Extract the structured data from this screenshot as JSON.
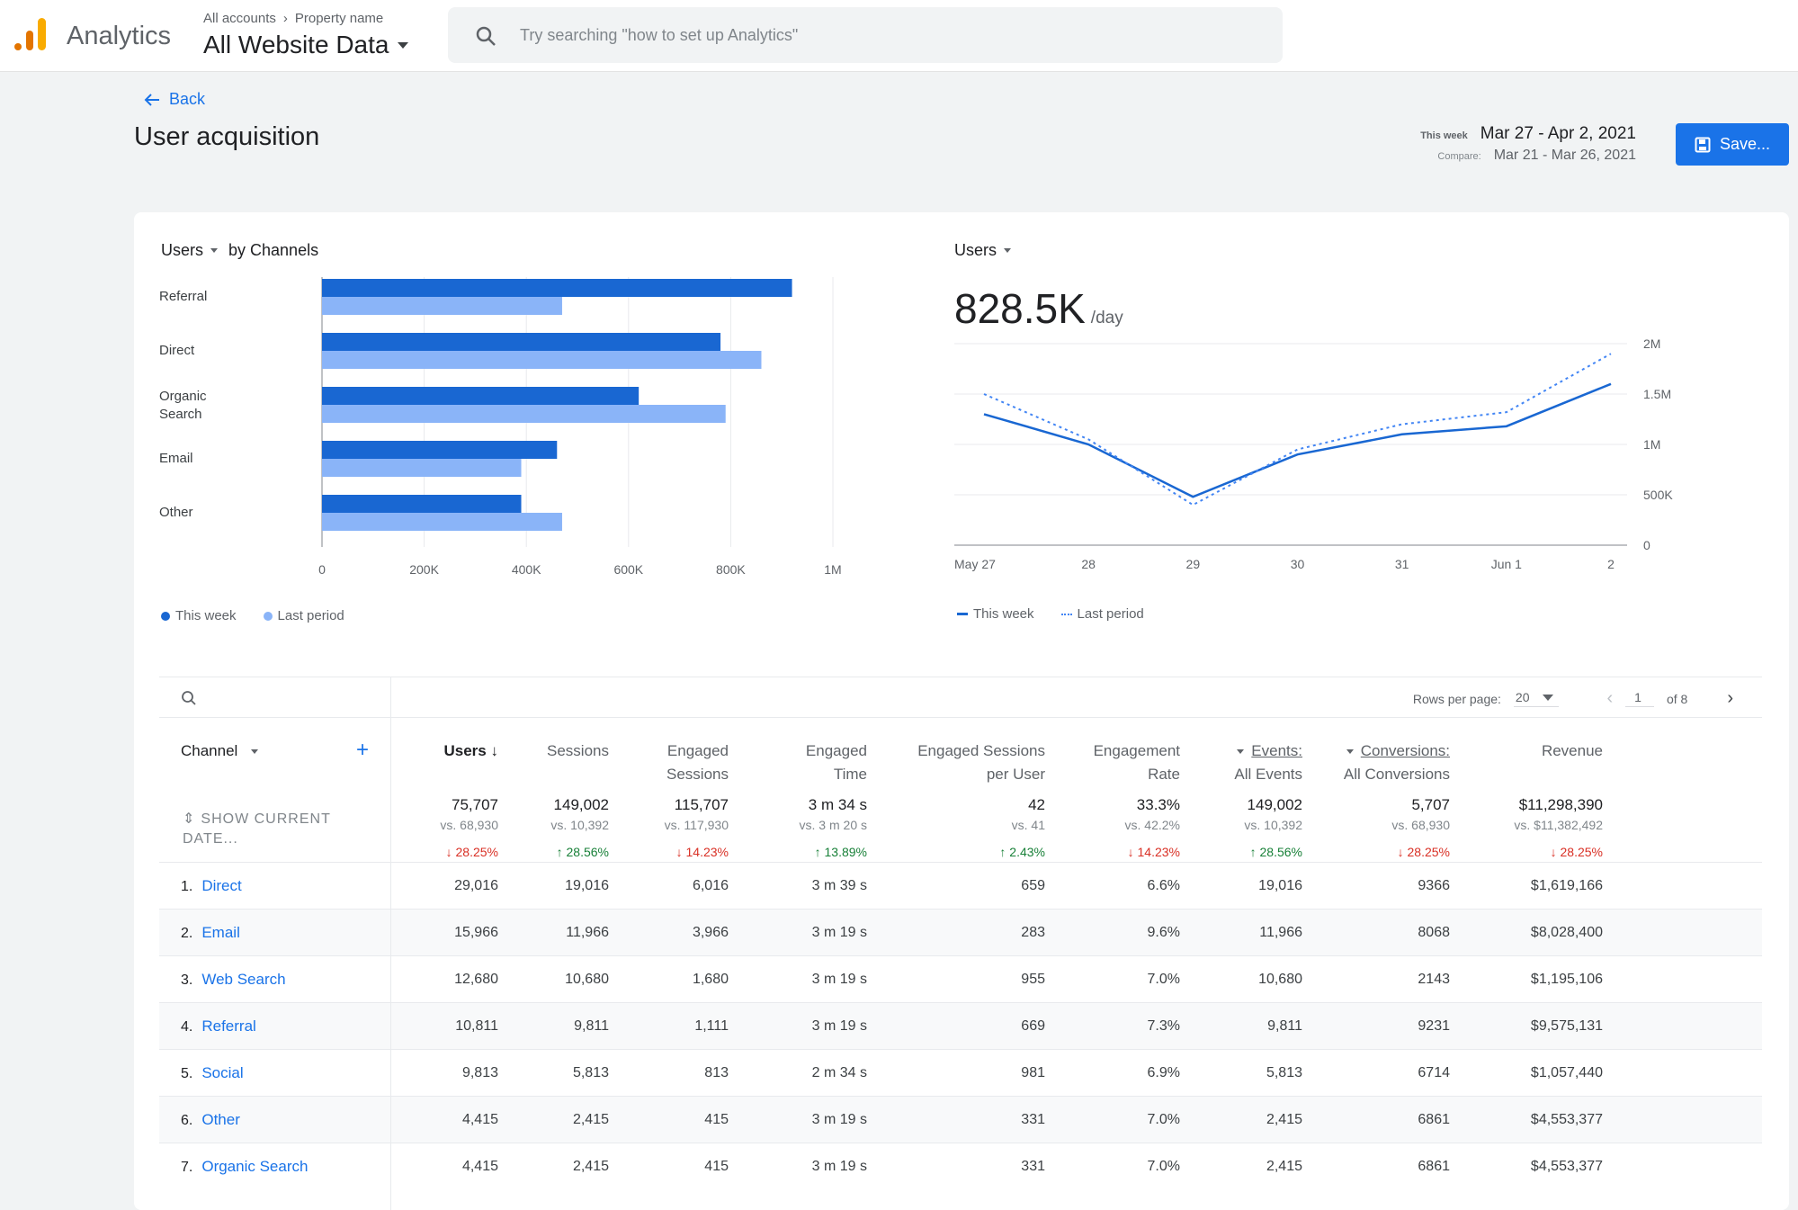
{
  "app": {
    "brand": "Analytics",
    "breadcrumb": [
      "All accounts",
      "Property name"
    ],
    "property": "All Website Data",
    "search_placeholder": "Try searching \"how to set up Analytics\""
  },
  "header": {
    "back_label": "Back",
    "title": "User acquisition",
    "date_label": "This week",
    "date_range": "Mar 27 - Apr 2, 2021",
    "compare_label": "Compare:",
    "compare_range": "Mar 21 - Mar 26, 2021",
    "save_label": "Save..."
  },
  "colors": {
    "accent": "#1a73e8",
    "this_week": "#1967d2",
    "last_period": "#8ab4f8",
    "down": "#d93025",
    "up": "#188038"
  },
  "chart_data": [
    {
      "type": "bar",
      "orientation": "horizontal",
      "title_metric": "Users",
      "title_suffix": "by Channels",
      "categories": [
        "Referral",
        "Direct",
        "Organic Search",
        "Email",
        "Other"
      ],
      "series": [
        {
          "name": "This week",
          "values": [
            920000,
            780000,
            620000,
            460000,
            390000
          ]
        },
        {
          "name": "Last period",
          "values": [
            470000,
            860000,
            790000,
            390000,
            470000
          ]
        }
      ],
      "xticks": [
        "0",
        "200K",
        "400K",
        "600K",
        "800K",
        "1M"
      ],
      "xlim": [
        0,
        1000000
      ],
      "grid": true,
      "legend": "bottom-left"
    },
    {
      "type": "line",
      "title_metric": "Users",
      "headline_value": "828.5K",
      "headline_unit": "/day",
      "x": [
        "May 27",
        "28",
        "29",
        "30",
        "31",
        "Jun 1",
        "2"
      ],
      "series": [
        {
          "name": "This week",
          "style": "solid",
          "values": [
            1300000,
            1000000,
            480000,
            900000,
            1100000,
            1180000,
            1600000
          ]
        },
        {
          "name": "Last period",
          "style": "dotted",
          "values": [
            1500000,
            1050000,
            400000,
            950000,
            1200000,
            1320000,
            1900000
          ]
        }
      ],
      "yticks": [
        "0",
        "500K",
        "1M",
        "1.5M",
        "2M"
      ],
      "ylim": [
        0,
        2000000
      ],
      "y_axis_side": "right",
      "grid": true,
      "legend": "bottom-left"
    }
  ],
  "table": {
    "pager": {
      "rows_label": "Rows per page:",
      "rows_value": "20",
      "page": "1",
      "of": "of 8"
    },
    "channel_header": "Channel",
    "columns": [
      {
        "l1": "Users",
        "l2": ""
      },
      {
        "l1": "Sessions",
        "l2": ""
      },
      {
        "l1": "Engaged",
        "l2": "Sessions"
      },
      {
        "l1": "Engaged",
        "l2": "Time"
      },
      {
        "l1": "Engaged Sessions",
        "l2": "per User"
      },
      {
        "l1": "Engagement",
        "l2": "Rate"
      },
      {
        "l1": "Events:",
        "l2": "All Events"
      },
      {
        "l1": "Conversions:",
        "l2": "All Conversions"
      },
      {
        "l1": "Revenue",
        "l2": ""
      }
    ],
    "show_date_label": "SHOW CURRENT DATE...",
    "totals": [
      {
        "v": "75,707",
        "vs": "vs. 68,930",
        "d": "↓ 28.25%",
        "dir": "dn"
      },
      {
        "v": "149,002",
        "vs": "vs. 10,392",
        "d": "↑ 28.56%",
        "dir": "up"
      },
      {
        "v": "115,707",
        "vs": "vs. 117,930",
        "d": "↓ 14.23%",
        "dir": "dn"
      },
      {
        "v": "3 m 34 s",
        "vs": "vs. 3 m 20 s",
        "d": "↑ 13.89%",
        "dir": "up"
      },
      {
        "v": "42",
        "vs": "vs. 41",
        "d": "↑ 2.43%",
        "dir": "up"
      },
      {
        "v": "33.3%",
        "vs": "vs. 42.2%",
        "d": "↓ 14.23%",
        "dir": "dn"
      },
      {
        "v": "149,002",
        "vs": "vs. 10,392",
        "d": "↑ 28.56%",
        "dir": "up"
      },
      {
        "v": "5,707",
        "vs": "vs. 68,930",
        "d": "↓ 28.25%",
        "dir": "dn"
      },
      {
        "v": "$11,298,390",
        "vs": "vs. $11,382,492",
        "d": "↓ 28.25%",
        "dir": "dn"
      }
    ],
    "rows": [
      {
        "idx": "1.",
        "name": "Direct",
        "cells": [
          "29,016",
          "19,016",
          "6,016",
          "3 m 39 s",
          "659",
          "6.6%",
          "19,016",
          "9366",
          "$1,619,166"
        ]
      },
      {
        "idx": "2.",
        "name": "Email",
        "cells": [
          "15,966",
          "11,966",
          "3,966",
          "3 m 19 s",
          "283",
          "9.6%",
          "11,966",
          "8068",
          "$8,028,400"
        ]
      },
      {
        "idx": "3.",
        "name": "Web Search",
        "cells": [
          "12,680",
          "10,680",
          "1,680",
          "3 m 19 s",
          "955",
          "7.0%",
          "10,680",
          "2143",
          "$1,195,106"
        ]
      },
      {
        "idx": "4.",
        "name": "Referral",
        "cells": [
          "10,811",
          "9,811",
          "1,111",
          "3 m 19 s",
          "669",
          "7.3%",
          "9,811",
          "9231",
          "$9,575,131"
        ]
      },
      {
        "idx": "5.",
        "name": "Social",
        "cells": [
          "9,813",
          "5,813",
          "813",
          "2 m 34 s",
          "981",
          "6.9%",
          "5,813",
          "6714",
          "$1,057,440"
        ]
      },
      {
        "idx": "6.",
        "name": "Other",
        "cells": [
          "4,415",
          "2,415",
          "415",
          "3 m 19 s",
          "331",
          "7.0%",
          "2,415",
          "6861",
          "$4,553,377"
        ]
      },
      {
        "idx": "7.",
        "name": "Organic Search",
        "cells": [
          "4,415",
          "2,415",
          "415",
          "3 m 19 s",
          "331",
          "7.0%",
          "2,415",
          "6861",
          "$4,553,377"
        ]
      }
    ]
  }
}
